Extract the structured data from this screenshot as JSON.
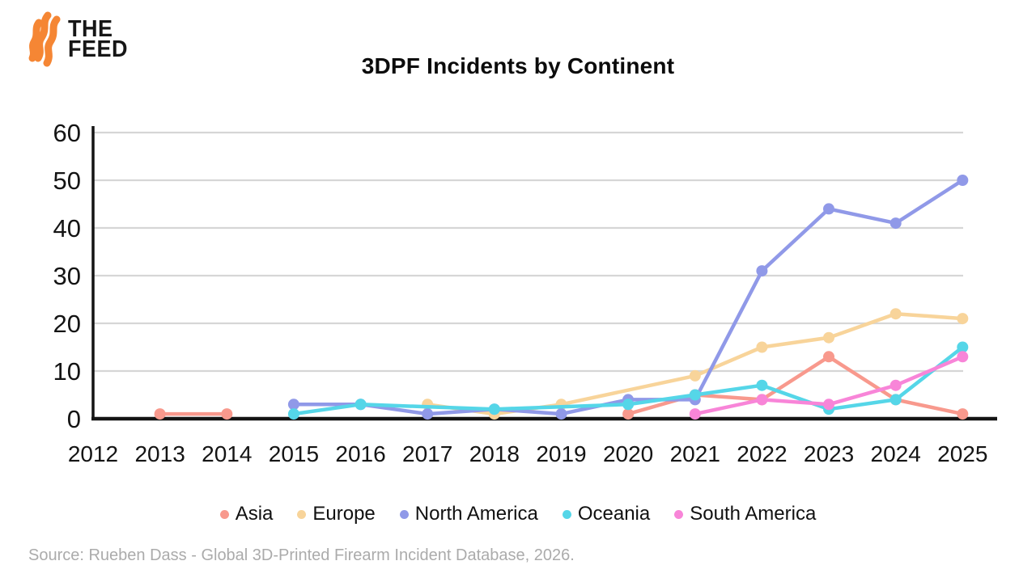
{
  "logo": {
    "line1": "THE",
    "line2": "FEED",
    "flame_color": "#F58634"
  },
  "title": "3DPF Incidents by Continent",
  "source": "Source: Rueben Dass - Global 3D-Printed Firearm Incident Database, 2026.",
  "chart_data": {
    "type": "line",
    "title": "3DPF Incidents by Continent",
    "x": [
      2012,
      2013,
      2014,
      2015,
      2016,
      2017,
      2018,
      2019,
      2020,
      2021,
      2022,
      2023,
      2024,
      2025
    ],
    "y_ticks": [
      0,
      10,
      20,
      30,
      40,
      50,
      60
    ],
    "ylim": [
      0,
      60
    ],
    "grid": true,
    "legend_position": "bottom",
    "series": [
      {
        "name": "Asia",
        "color": "#F8998D",
        "span_gaps": false,
        "values": [
          null,
          1,
          1,
          null,
          null,
          null,
          null,
          null,
          1,
          5,
          4,
          13,
          4,
          1
        ]
      },
      {
        "name": "Europe",
        "color": "#F8D49A",
        "span_gaps": true,
        "values": [
          null,
          null,
          null,
          null,
          null,
          3,
          1,
          3,
          null,
          9,
          15,
          17,
          22,
          21
        ]
      },
      {
        "name": "North America",
        "color": "#9099E8",
        "span_gaps": true,
        "values": [
          null,
          null,
          null,
          3,
          3,
          1,
          2,
          1,
          4,
          4,
          31,
          44,
          41,
          50
        ]
      },
      {
        "name": "Oceania",
        "color": "#55D6E8",
        "span_gaps": true,
        "values": [
          null,
          null,
          null,
          1,
          3,
          null,
          2,
          null,
          3,
          5,
          7,
          2,
          4,
          15
        ]
      },
      {
        "name": "South America",
        "color": "#F885D8",
        "span_gaps": true,
        "values": [
          null,
          null,
          null,
          null,
          null,
          null,
          null,
          null,
          null,
          1,
          4,
          3,
          7,
          13
        ]
      }
    ],
    "colors": {
      "axis": "#141414",
      "gridline": "#d6d6d6",
      "tick_label": "#141414"
    }
  }
}
